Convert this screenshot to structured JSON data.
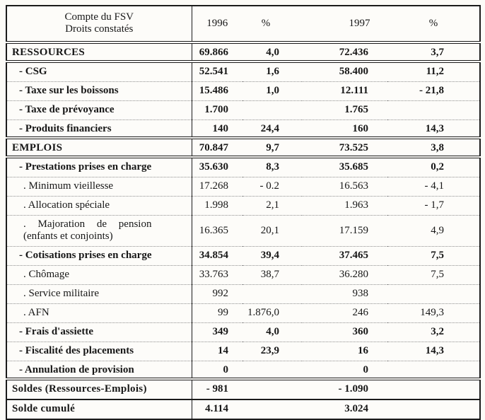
{
  "document": {
    "header": {
      "label_line1": "Compte du FSV",
      "label_line2": "Droits constatés",
      "col_1996": "1996",
      "col_pct1": "%",
      "col_1997": "1997",
      "col_pct2": "%"
    },
    "rows": [
      {
        "label": "RESSOURCES",
        "v1996": "69.866",
        "p1996": "4,0",
        "v1997": "72.436",
        "p1997": "3,7"
      },
      {
        "label": "- CSG",
        "v1996": "52.541",
        "p1996": "1,6",
        "v1997": "58.400",
        "p1997": "11,2"
      },
      {
        "label": "- Taxe sur les boissons",
        "v1996": "15.486",
        "p1996": "1,0",
        "v1997": "12.111",
        "p1997": "- 21,8"
      },
      {
        "label": "- Taxe de prévoyance",
        "v1996": "1.700",
        "p1996": "",
        "v1997": "1.765",
        "p1997": ""
      },
      {
        "label": "- Produits financiers",
        "v1996": "140",
        "p1996": "24,4",
        "v1997": "160",
        "p1997": "14,3"
      },
      {
        "label": "EMPLOIS",
        "v1996": "70.847",
        "p1996": "9,7",
        "v1997": "73.525",
        "p1997": "3,8"
      },
      {
        "label": "- Prestations prises en charge",
        "v1996": "35.630",
        "p1996": "8,3",
        "v1997": "35.685",
        "p1997": "0,2"
      },
      {
        "label": ". Minimum vieillesse",
        "v1996": "17.268",
        "p1996": "- 0.2",
        "v1997": "16.563",
        "p1997": "- 4,1"
      },
      {
        "label": ". Allocation spéciale",
        "v1996": "1.998",
        "p1996": "2,1",
        "v1997": "1.963",
        "p1997": "- 1,7"
      },
      {
        "label": ". Majoration de pension",
        "label2": "(enfants et conjoints)",
        "v1996": "16.365",
        "p1996": "20,1",
        "v1997": "17.159",
        "p1997": "4,9"
      },
      {
        "label": "- Cotisations prises en charge",
        "v1996": "34.854",
        "p1996": "39,4",
        "v1997": "37.465",
        "p1997": "7,5"
      },
      {
        "label": ". Chômage",
        "v1996": "33.763",
        "p1996": "38,7",
        "v1997": "36.280",
        "p1997": "7,5"
      },
      {
        "label": ". Service militaire",
        "v1996": "992",
        "p1996": "",
        "v1997": "938",
        "p1997": ""
      },
      {
        "label": ". AFN",
        "v1996": "99",
        "p1996": "1.876,0",
        "v1997": "246",
        "p1997": "149,3"
      },
      {
        "label": "- Frais d'assiette",
        "v1996": "349",
        "p1996": "4,0",
        "v1997": "360",
        "p1997": "3,2"
      },
      {
        "label": "- Fiscalité des placements",
        "v1996": "14",
        "p1996": "23,9",
        "v1997": "16",
        "p1997": "14,3"
      },
      {
        "label": "- Annulation de provision",
        "v1996": "0",
        "p1996": "",
        "v1997": "0",
        "p1997": ""
      },
      {
        "label": "Soldes (Ressources-Emplois)",
        "v1996": "- 981",
        "p1996": "",
        "v1997": "- 1.090",
        "p1997": ""
      },
      {
        "label": "Solde cumulé",
        "v1996": "4.114",
        "p1996": "",
        "v1997": "3.024",
        "p1997": ""
      }
    ]
  }
}
